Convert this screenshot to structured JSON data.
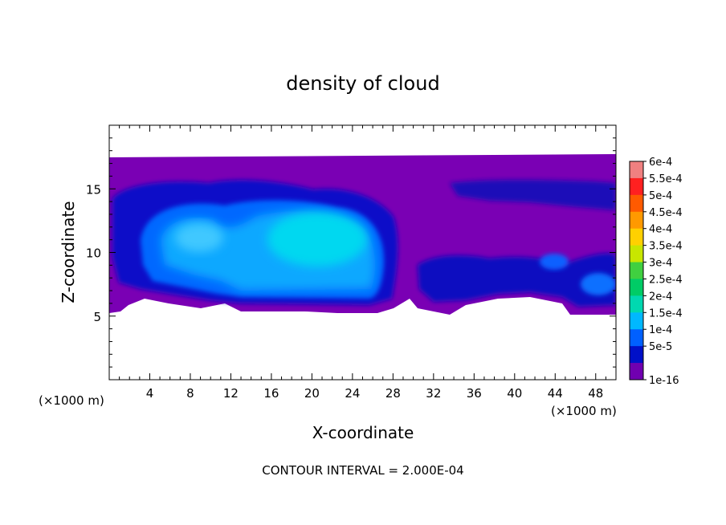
{
  "chart_data": {
    "type": "heatmap",
    "title": "density of cloud",
    "xlabel": "X-coordinate",
    "ylabel": "Z-coordinate",
    "x_unit": "(×1000 m)",
    "x_unit_right": "(×1000 m)",
    "xlim": [
      0,
      50
    ],
    "ylim": [
      0,
      20
    ],
    "x_ticks": [
      4,
      8,
      12,
      16,
      20,
      24,
      28,
      32,
      36,
      40,
      44,
      48
    ],
    "y_ticks": [
      5,
      10,
      15
    ],
    "footer": "CONTOUR INTERVAL = 2.000E-04",
    "colorbar": {
      "labels": [
        "6e-4",
        "5.5e-4",
        "5e-4",
        "4.5e-4",
        "4e-4",
        "3.5e-4",
        "3e-4",
        "2.5e-4",
        "2e-4",
        "1.5e-4",
        "1e-4",
        "5e-5",
        "1e-16"
      ],
      "colors": [
        "#f08080",
        "#ff2020",
        "#ff5a00",
        "#ff9900",
        "#ffd000",
        "#c8e600",
        "#40d040",
        "#00cc66",
        "#00d8b0",
        "#00b8ff",
        "#0060ff",
        "#0010c8",
        "#7000b0"
      ]
    },
    "cloud_extent": {
      "x": [
        0,
        50
      ],
      "z": [
        5,
        17.5
      ]
    },
    "regions": [
      {
        "x": [
          0,
          50
        ],
        "z": [
          5.3,
          17.3
        ],
        "level": "1e-16"
      },
      {
        "x": [
          0.5,
          27
        ],
        "z": [
          5.8,
          15.5
        ],
        "level": "5e-5"
      },
      {
        "x": [
          3,
          26
        ],
        "z": [
          6.5,
          14.5
        ],
        "level": "1e-4"
      },
      {
        "x": [
          5,
          26
        ],
        "z": [
          7,
          13.5
        ],
        "level": "1.5e-4"
      },
      {
        "x": [
          16,
          26
        ],
        "z": [
          9,
          13
        ],
        "level": "2e-4"
      },
      {
        "x": [
          30,
          50
        ],
        "z": [
          5.5,
          15
        ],
        "level": "5e-5"
      },
      {
        "x": [
          44,
          50
        ],
        "z": [
          6,
          9
        ],
        "level": "1e-4"
      }
    ]
  }
}
